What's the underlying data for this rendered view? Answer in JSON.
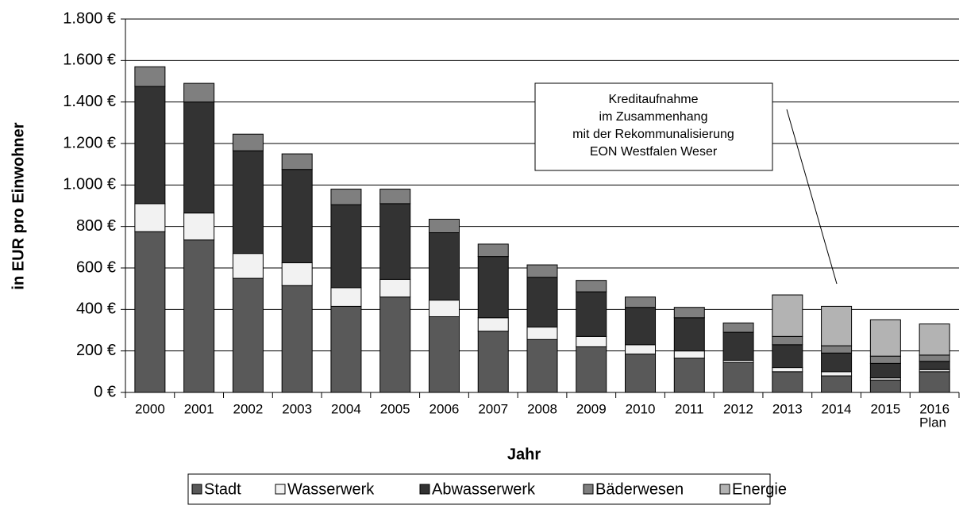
{
  "chart_data": {
    "type": "stacked-bar",
    "y_label": "in EUR pro Einwohner",
    "x_label": "Jahr",
    "x_note": "Plan",
    "annotation": [
      "Kreditaufnahme",
      "im Zusammenhang",
      "mit der Rekommunalisierung",
      "EON Westfalen Weser"
    ],
    "categories": [
      "2000",
      "2001",
      "2002",
      "2003",
      "2004",
      "2005",
      "2006",
      "2007",
      "2008",
      "2009",
      "2010",
      "2011",
      "2012",
      "2013",
      "2014",
      "2015",
      "2016"
    ],
    "series": [
      {
        "name": "Stadt",
        "color": "#595959",
        "values": [
          775,
          735,
          550,
          515,
          415,
          460,
          365,
          295,
          255,
          220,
          185,
          165,
          145,
          100,
          80,
          60,
          100
        ]
      },
      {
        "name": "Wasserwerk",
        "color": "#f2f2f2",
        "values": [
          135,
          130,
          120,
          110,
          90,
          85,
          80,
          65,
          60,
          50,
          45,
          35,
          10,
          20,
          20,
          10,
          10
        ]
      },
      {
        "name": "Abwasserwerk",
        "color": "#333333",
        "values": [
          565,
          535,
          495,
          450,
          400,
          365,
          325,
          295,
          240,
          215,
          180,
          160,
          135,
          110,
          90,
          70,
          40
        ]
      },
      {
        "name": "Bäderwesen",
        "color": "#7f7f7f",
        "values": [
          95,
          90,
          80,
          75,
          75,
          70,
          65,
          60,
          60,
          55,
          50,
          50,
          45,
          40,
          35,
          35,
          30
        ]
      },
      {
        "name": "Energie",
        "color": "#b3b3b3",
        "values": [
          0,
          0,
          0,
          0,
          0,
          0,
          0,
          0,
          0,
          0,
          0,
          0,
          0,
          200,
          190,
          175,
          150
        ]
      }
    ],
    "ylim": [
      0,
      1800
    ],
    "yticks": [
      {
        "value": 0,
        "label": "0 €"
      },
      {
        "value": 200,
        "label": "200 €"
      },
      {
        "value": 400,
        "label": "400 €"
      },
      {
        "value": 600,
        "label": "600 €"
      },
      {
        "value": 800,
        "label": "800 €"
      },
      {
        "value": 1000,
        "label": "1.000 €"
      },
      {
        "value": 1200,
        "label": "1.200 €"
      },
      {
        "value": 1400,
        "label": "1.400 €"
      },
      {
        "value": 1600,
        "label": "1.600 €"
      },
      {
        "value": 1800,
        "label": "1.800 €"
      }
    ],
    "grid": true
  }
}
